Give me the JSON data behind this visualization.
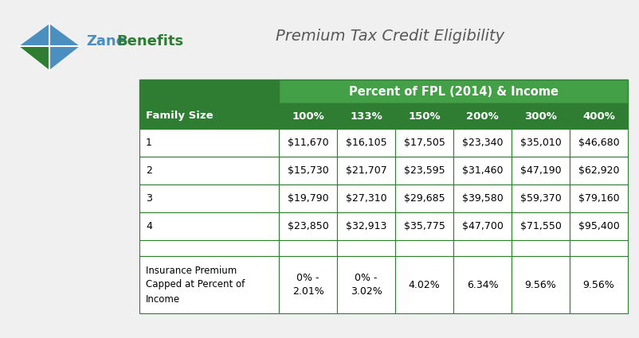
{
  "title": "Premium Tax Credit Eligibility",
  "header_main": "Percent of FPL (2014) & Income",
  "col_headers": [
    "Family Size",
    "100%",
    "133%",
    "150%",
    "200%",
    "300%",
    "400%"
  ],
  "rows": [
    [
      "1",
      "$11,670",
      "$16,105",
      "$17,505",
      "$23,340",
      "$35,010",
      "$46,680"
    ],
    [
      "2",
      "$15,730",
      "$21,707",
      "$23,595",
      "$31,460",
      "$47,190",
      "$62,920"
    ],
    [
      "3",
      "$19,790",
      "$27,310",
      "$29,685",
      "$39,580",
      "$59,370",
      "$79,160"
    ],
    [
      "4",
      "$23,850",
      "$32,913",
      "$35,775",
      "$47,700",
      "$71,550",
      "$95,400"
    ]
  ],
  "bottom_label": "Insurance Premium\nCapped at Percent of\nIncome",
  "bottom_values": [
    "0% -\n2.01%",
    "0% -\n3.02%",
    "4.02%",
    "6.34%",
    "9.56%",
    "9.56%"
  ],
  "green_dark": "#2e7d32",
  "green_header": "#43a047",
  "border_color": "#2e7d32",
  "white": "#ffffff",
  "black": "#000000",
  "bg_color": "#f0f0f0",
  "logo_blue": "#4a90c4",
  "logo_green": "#2e7d32",
  "title_color": "#595959",
  "text_dark": "#333333"
}
